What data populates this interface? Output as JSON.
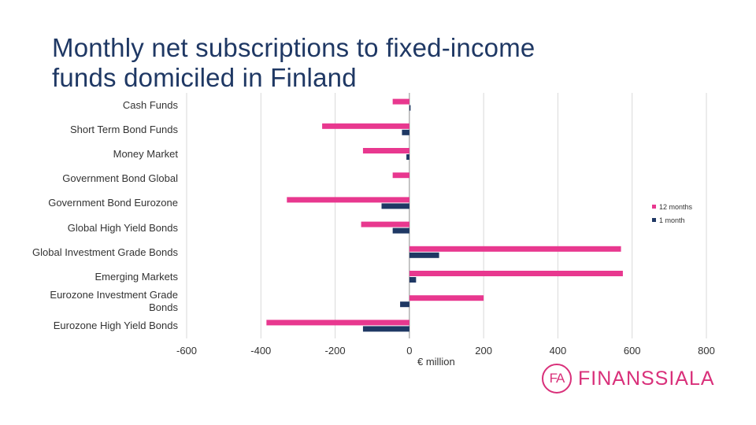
{
  "page": {
    "title_line1": "Monthly net subscriptions to fixed-income",
    "title_line2": "funds domiciled in Finland",
    "logo_mark": "FA",
    "logo_text": "FINANSSIALA"
  },
  "colors": {
    "series_12m": "#e8388f",
    "series_1m": "#1f3864",
    "grid": "#d9d9d9",
    "axis": "#8c8c8c"
  },
  "chart_data": {
    "type": "bar",
    "orientation": "horizontal",
    "title": "Monthly net subscriptions to fixed-income funds domiciled in Finland",
    "xlabel": "€ million",
    "xlim": [
      -600,
      800
    ],
    "xticks": [
      -600,
      -400,
      -200,
      0,
      200,
      400,
      600,
      800
    ],
    "legend_position": "right",
    "categories": [
      "Cash Funds",
      "Short Term Bond Funds",
      "Money Market",
      "Government Bond Global",
      "Government Bond Eurozone",
      "Global High Yield Bonds",
      "Global Investment Grade Bonds",
      "Emerging Markets",
      "Eurozone Investment Grade Bonds",
      "Eurozone High Yield Bonds"
    ],
    "series": [
      {
        "name": "12 months",
        "values": [
          -45,
          -235,
          -125,
          -45,
          -330,
          -130,
          570,
          575,
          200,
          -385
        ]
      },
      {
        "name": "1 month",
        "values": [
          3,
          -20,
          -8,
          0,
          -75,
          -45,
          80,
          18,
          -25,
          -125
        ]
      }
    ]
  }
}
